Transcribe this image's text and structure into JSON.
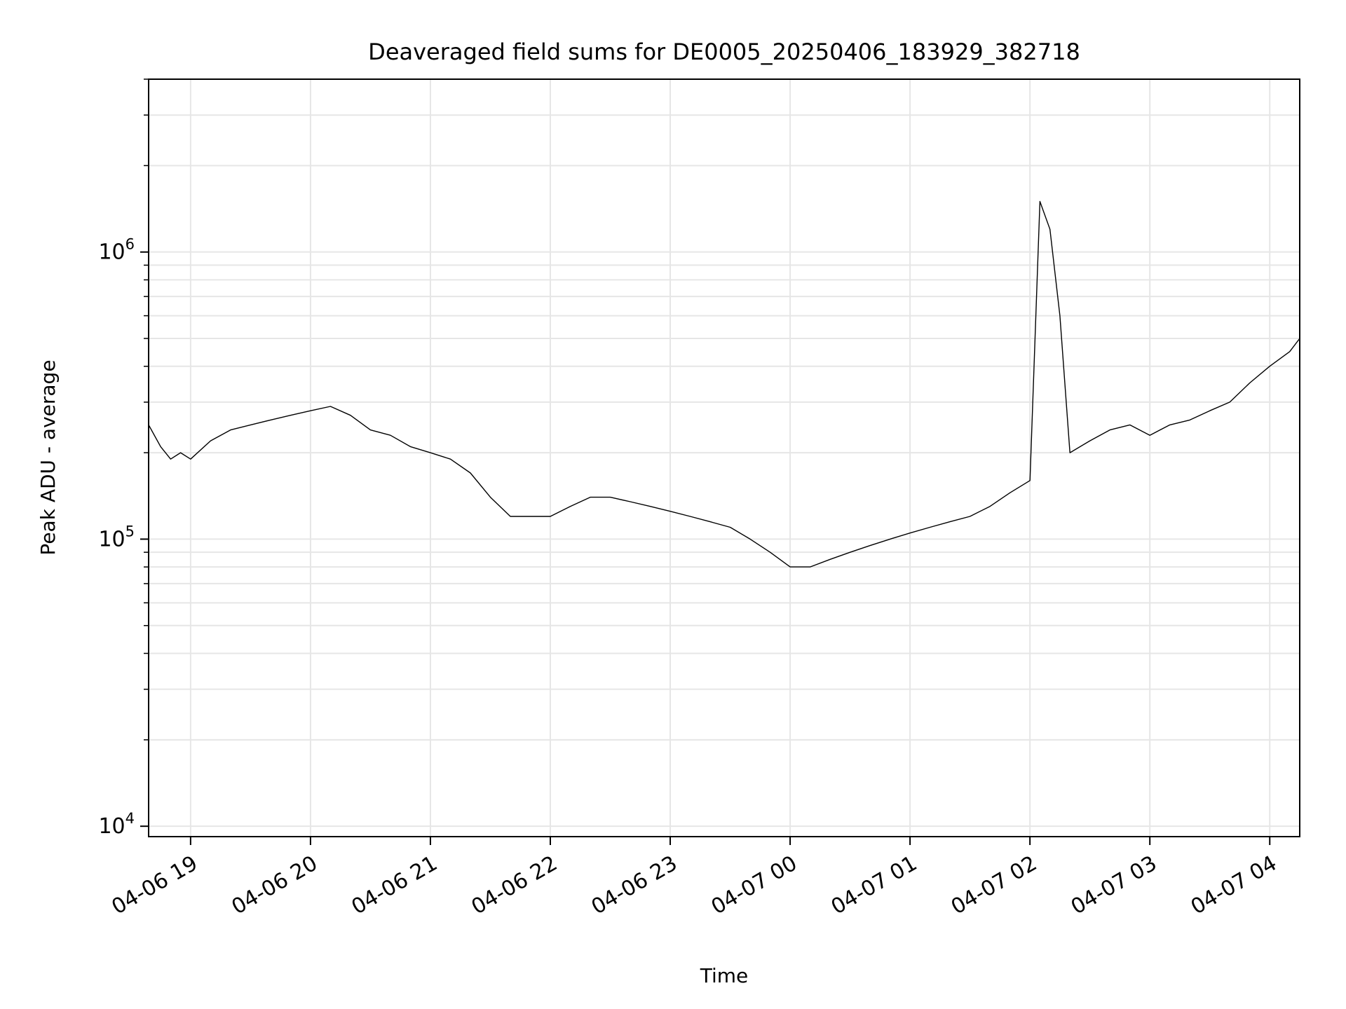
{
  "chart_data": {
    "type": "line",
    "title": "Deaveraged field sums for DE0005_20250406_183929_382718",
    "xlabel": "Time",
    "ylabel": "Peak ADU - average",
    "y_scale": "log",
    "ylim": [
      9200,
      4000000
    ],
    "xlim": [
      "2025-04-06 18:39",
      "2025-04-07 04:15"
    ],
    "grid": true,
    "grid_minor_y": true,
    "line_color": "#000000",
    "x_ticks": [
      {
        "value": "2025-04-06 19:00",
        "label": "04-06 19"
      },
      {
        "value": "2025-04-06 20:00",
        "label": "04-06 20"
      },
      {
        "value": "2025-04-06 21:00",
        "label": "04-06 21"
      },
      {
        "value": "2025-04-06 22:00",
        "label": "04-06 22"
      },
      {
        "value": "2025-04-06 23:00",
        "label": "04-06 23"
      },
      {
        "value": "2025-04-07 00:00",
        "label": "04-07 00"
      },
      {
        "value": "2025-04-07 01:00",
        "label": "04-07 01"
      },
      {
        "value": "2025-04-07 02:00",
        "label": "04-07 02"
      },
      {
        "value": "2025-04-07 03:00",
        "label": "04-07 03"
      },
      {
        "value": "2025-04-07 04:00",
        "label": "04-07 04"
      }
    ],
    "y_ticks": [
      {
        "value": 10000,
        "base": "10",
        "exp": "4"
      },
      {
        "value": 100000,
        "base": "10",
        "exp": "5"
      },
      {
        "value": 1000000,
        "base": "10",
        "exp": "6"
      }
    ],
    "series": [
      {
        "x": [
          "2025-04-06 18:39",
          "2025-04-06 18:45",
          "2025-04-06 18:50",
          "2025-04-06 18:55",
          "2025-04-06 19:00",
          "2025-04-06 19:10",
          "2025-04-06 19:20",
          "2025-04-06 19:30",
          "2025-04-06 19:40",
          "2025-04-06 19:50",
          "2025-04-06 20:00",
          "2025-04-06 20:10",
          "2025-04-06 20:20",
          "2025-04-06 20:30",
          "2025-04-06 20:40",
          "2025-04-06 20:50",
          "2025-04-06 21:00",
          "2025-04-06 21:10",
          "2025-04-06 21:20",
          "2025-04-06 21:30",
          "2025-04-06 21:40",
          "2025-04-06 21:50",
          "2025-04-06 22:00",
          "2025-04-06 22:10",
          "2025-04-06 22:20",
          "2025-04-06 22:30",
          "2025-04-06 22:40",
          "2025-04-06 22:50",
          "2025-04-06 23:00",
          "2025-04-06 23:10",
          "2025-04-06 23:20",
          "2025-04-06 23:30",
          "2025-04-06 23:40",
          "2025-04-06 23:50",
          "2025-04-07 00:00",
          "2025-04-07 00:10",
          "2025-04-07 00:20",
          "2025-04-07 00:30",
          "2025-04-07 00:40",
          "2025-04-07 00:50",
          "2025-04-07 01:00",
          "2025-04-07 01:10",
          "2025-04-07 01:20",
          "2025-04-07 01:30",
          "2025-04-07 01:40",
          "2025-04-07 01:50",
          "2025-04-07 02:00",
          "2025-04-07 02:05",
          "2025-04-07 02:10",
          "2025-04-07 02:15",
          "2025-04-07 02:20",
          "2025-04-07 02:30",
          "2025-04-07 02:40",
          "2025-04-07 02:50",
          "2025-04-07 03:00",
          "2025-04-07 03:10",
          "2025-04-07 03:20",
          "2025-04-07 03:30",
          "2025-04-07 03:40",
          "2025-04-07 03:50",
          "2025-04-07 04:00",
          "2025-04-07 04:10",
          "2025-04-07 04:15"
        ],
        "y": [
          250000,
          210000,
          190000,
          200000,
          190000,
          220000,
          240000,
          250000,
          260000,
          270000,
          280000,
          290000,
          270000,
          240000,
          230000,
          210000,
          200000,
          190000,
          170000,
          140000,
          120000,
          120000,
          120000,
          130000,
          140000,
          140000,
          135000,
          130000,
          125000,
          120000,
          115000,
          110000,
          100000,
          90000,
          80000,
          80000,
          85000,
          90000,
          95000,
          100000,
          105000,
          110000,
          115000,
          120000,
          130000,
          145000,
          160000,
          1500000,
          1200000,
          600000,
          200000,
          220000,
          240000,
          250000,
          230000,
          250000,
          260000,
          280000,
          300000,
          350000,
          400000,
          450000,
          500000
        ]
      }
    ]
  }
}
